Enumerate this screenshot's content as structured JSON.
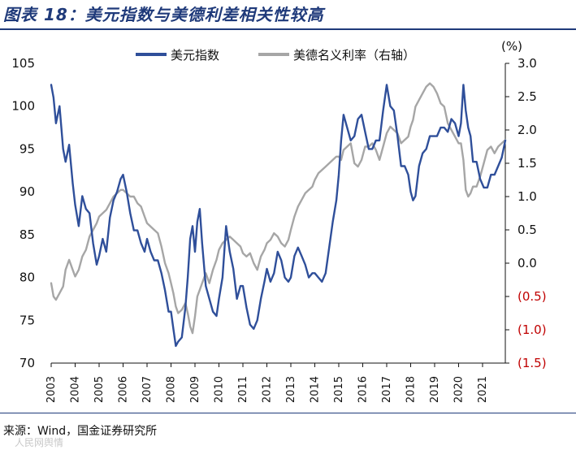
{
  "header": {
    "title": "图表 18：美元指数与美德利差相关性较高"
  },
  "footer": {
    "source": "来源：Wind，国金证券研究所",
    "watermark": "人民网舆情"
  },
  "chart_data": {
    "type": "line",
    "title": "",
    "left_axis": {
      "min": 70,
      "max": 105,
      "ticks": [
        "70",
        "75",
        "80",
        "85",
        "90",
        "95",
        "100",
        "105"
      ]
    },
    "right_axis": {
      "unit_label": "(%)",
      "min": -1.5,
      "max": 3.0,
      "ticks": [
        "(1.5)",
        "(1.0)",
        "(0.5)",
        "0.0",
        "0.5",
        "1.0",
        "1.5",
        "2.0",
        "2.5",
        "3.0"
      ],
      "negative_color": "#c00000"
    },
    "x_axis": {
      "ticks": [
        "2003",
        "2004",
        "2005",
        "2006",
        "2007",
        "2008",
        "2009",
        "2010",
        "2011",
        "2012",
        "2013",
        "2014",
        "2015",
        "2016",
        "2017",
        "2018",
        "2019",
        "2020",
        "2021"
      ],
      "min": 2003.0,
      "max": 2021.95
    },
    "legend_position": "top",
    "grid": false,
    "series": [
      {
        "name": "美元指数",
        "axis": "left",
        "color": "#2f4f9a",
        "x": [
          2003.0,
          2003.1,
          2003.2,
          2003.35,
          2003.5,
          2003.6,
          2003.75,
          2003.9,
          2004.0,
          2004.15,
          2004.3,
          2004.45,
          2004.6,
          2004.75,
          2004.9,
          2005.0,
          2005.15,
          2005.3,
          2005.45,
          2005.6,
          2005.75,
          2005.9,
          2006.0,
          2006.15,
          2006.3,
          2006.45,
          2006.6,
          2006.75,
          2006.9,
          2007.0,
          2007.15,
          2007.3,
          2007.45,
          2007.6,
          2007.75,
          2007.9,
          2008.0,
          2008.1,
          2008.2,
          2008.3,
          2008.45,
          2008.6,
          2008.7,
          2008.8,
          2008.9,
          2009.0,
          2009.1,
          2009.2,
          2009.3,
          2009.45,
          2009.6,
          2009.75,
          2009.9,
          2010.0,
          2010.15,
          2010.3,
          2010.45,
          2010.6,
          2010.75,
          2010.9,
          2011.0,
          2011.15,
          2011.3,
          2011.45,
          2011.6,
          2011.75,
          2011.9,
          2012.0,
          2012.15,
          2012.3,
          2012.45,
          2012.6,
          2012.75,
          2012.9,
          2013.0,
          2013.15,
          2013.3,
          2013.45,
          2013.6,
          2013.75,
          2013.9,
          2014.0,
          2014.15,
          2014.3,
          2014.45,
          2014.6,
          2014.75,
          2014.9,
          2015.0,
          2015.1,
          2015.2,
          2015.35,
          2015.5,
          2015.65,
          2015.8,
          2015.95,
          2016.1,
          2016.25,
          2016.4,
          2016.55,
          2016.7,
          2016.85,
          2017.0,
          2017.15,
          2017.3,
          2017.45,
          2017.6,
          2017.75,
          2017.9,
          2018.0,
          2018.1,
          2018.2,
          2018.35,
          2018.5,
          2018.65,
          2018.8,
          2018.95,
          2019.1,
          2019.25,
          2019.4,
          2019.55,
          2019.7,
          2019.85,
          2020.0,
          2020.1,
          2020.2,
          2020.3,
          2020.4,
          2020.5,
          2020.6,
          2020.75,
          2020.9,
          2021.05,
          2021.2,
          2021.35,
          2021.5,
          2021.65,
          2021.8,
          2021.95
        ],
        "values": [
          102.5,
          101.0,
          98.0,
          100.0,
          95.0,
          93.5,
          95.5,
          91.0,
          88.5,
          86.0,
          89.5,
          88.0,
          87.5,
          84.0,
          81.5,
          82.5,
          84.5,
          83.0,
          87.0,
          89.0,
          90.0,
          91.5,
          92.0,
          90.0,
          87.5,
          85.5,
          85.5,
          84.0,
          83.0,
          84.5,
          83.0,
          82.0,
          82.0,
          80.5,
          78.5,
          76.0,
          76.0,
          74.0,
          72.0,
          72.5,
          73.0,
          76.5,
          80.0,
          84.5,
          86.0,
          83.0,
          86.5,
          88.0,
          84.0,
          79.0,
          77.5,
          76.0,
          75.5,
          77.5,
          80.0,
          86.0,
          83.0,
          81.0,
          77.5,
          79.0,
          79.0,
          76.5,
          74.5,
          74.0,
          75.0,
          77.5,
          79.5,
          81.0,
          79.5,
          80.5,
          83.0,
          82.0,
          80.0,
          79.5,
          80.0,
          82.5,
          83.5,
          82.5,
          81.5,
          80.0,
          80.5,
          80.5,
          80.0,
          79.5,
          80.5,
          83.5,
          86.5,
          89.0,
          92.0,
          96.0,
          99.0,
          97.5,
          96.0,
          96.5,
          98.5,
          99.0,
          97.0,
          95.0,
          95.0,
          96.0,
          96.0,
          99.5,
          102.5,
          100.0,
          99.5,
          96.5,
          93.0,
          93.0,
          92.0,
          90.0,
          89.0,
          89.5,
          93.0,
          94.5,
          95.0,
          96.5,
          96.5,
          96.5,
          97.5,
          97.5,
          97.0,
          98.5,
          98.0,
          96.5,
          98.0,
          102.5,
          99.5,
          97.5,
          96.5,
          93.5,
          93.5,
          91.5,
          90.5,
          90.5,
          92.0,
          92.0,
          93.0,
          94.0,
          96.0
        ]
      },
      {
        "name": "美德名义利率（右轴）",
        "axis": "right",
        "color": "#a6a6a6",
        "x": [
          2003.0,
          2003.1,
          2003.2,
          2003.35,
          2003.5,
          2003.6,
          2003.75,
          2003.9,
          2004.0,
          2004.15,
          2004.3,
          2004.45,
          2004.6,
          2004.75,
          2004.9,
          2005.0,
          2005.15,
          2005.3,
          2005.45,
          2005.6,
          2005.75,
          2005.9,
          2006.0,
          2006.15,
          2006.3,
          2006.45,
          2006.6,
          2006.75,
          2006.9,
          2007.0,
          2007.15,
          2007.3,
          2007.45,
          2007.6,
          2007.75,
          2007.9,
          2008.0,
          2008.1,
          2008.2,
          2008.3,
          2008.45,
          2008.6,
          2008.7,
          2008.8,
          2008.9,
          2009.0,
          2009.1,
          2009.2,
          2009.3,
          2009.45,
          2009.6,
          2009.75,
          2009.9,
          2010.0,
          2010.15,
          2010.3,
          2010.45,
          2010.6,
          2010.75,
          2010.9,
          2011.0,
          2011.15,
          2011.3,
          2011.45,
          2011.6,
          2011.75,
          2011.9,
          2012.0,
          2012.15,
          2012.3,
          2012.45,
          2012.6,
          2012.75,
          2012.9,
          2013.0,
          2013.15,
          2013.3,
          2013.45,
          2013.6,
          2013.75,
          2013.9,
          2014.0,
          2014.15,
          2014.3,
          2014.45,
          2014.6,
          2014.75,
          2014.9,
          2015.0,
          2015.1,
          2015.2,
          2015.35,
          2015.5,
          2015.65,
          2015.8,
          2015.95,
          2016.1,
          2016.25,
          2016.4,
          2016.55,
          2016.7,
          2016.85,
          2017.0,
          2017.15,
          2017.3,
          2017.45,
          2017.6,
          2017.75,
          2017.9,
          2018.0,
          2018.1,
          2018.2,
          2018.35,
          2018.5,
          2018.65,
          2018.8,
          2018.95,
          2019.1,
          2019.25,
          2019.4,
          2019.55,
          2019.7,
          2019.85,
          2020.0,
          2020.1,
          2020.2,
          2020.3,
          2020.4,
          2020.5,
          2020.6,
          2020.75,
          2020.9,
          2021.05,
          2021.2,
          2021.35,
          2021.5,
          2021.65,
          2021.8,
          2021.95
        ],
        "values": [
          -0.3,
          -0.5,
          -0.55,
          -0.45,
          -0.35,
          -0.1,
          0.05,
          -0.1,
          -0.2,
          -0.1,
          0.1,
          0.2,
          0.4,
          0.5,
          0.6,
          0.7,
          0.75,
          0.8,
          0.9,
          1.0,
          1.05,
          1.1,
          1.1,
          1.05,
          1.0,
          1.0,
          0.9,
          0.85,
          0.7,
          0.6,
          0.55,
          0.5,
          0.45,
          0.25,
          0.0,
          -0.15,
          -0.3,
          -0.45,
          -0.65,
          -0.75,
          -0.7,
          -0.6,
          -0.75,
          -0.95,
          -1.05,
          -0.8,
          -0.5,
          -0.4,
          -0.3,
          -0.15,
          -0.3,
          -0.1,
          0.05,
          0.2,
          0.3,
          0.35,
          0.4,
          0.35,
          0.3,
          0.25,
          0.15,
          0.1,
          0.15,
          0.0,
          -0.1,
          0.1,
          0.2,
          0.3,
          0.35,
          0.45,
          0.4,
          0.3,
          0.25,
          0.35,
          0.5,
          0.7,
          0.85,
          0.95,
          1.05,
          1.1,
          1.15,
          1.25,
          1.35,
          1.4,
          1.45,
          1.5,
          1.55,
          1.6,
          1.6,
          1.55,
          1.7,
          1.75,
          1.8,
          1.5,
          1.45,
          1.55,
          1.75,
          1.75,
          1.8,
          1.7,
          1.55,
          1.75,
          1.95,
          2.05,
          2.0,
          1.95,
          1.8,
          1.85,
          1.9,
          2.05,
          2.15,
          2.35,
          2.45,
          2.55,
          2.65,
          2.7,
          2.65,
          2.55,
          2.4,
          2.35,
          2.1,
          2.0,
          1.9,
          1.8,
          1.8,
          1.55,
          1.1,
          1.0,
          1.05,
          1.15,
          1.15,
          1.3,
          1.5,
          1.7,
          1.75,
          1.65,
          1.75,
          1.8,
          1.85
        ]
      }
    ]
  }
}
